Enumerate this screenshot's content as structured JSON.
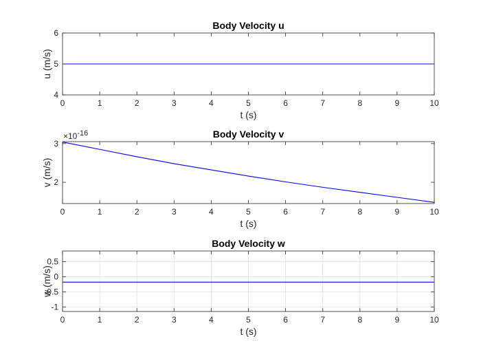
{
  "chart_data": [
    {
      "type": "line",
      "title": "Body Velocity u",
      "xlabel": "t (s)",
      "ylabel": "u (m/s)",
      "xlim": [
        0,
        10
      ],
      "ylim": [
        4,
        6
      ],
      "xticks": [
        0,
        1,
        2,
        3,
        4,
        5,
        6,
        7,
        8,
        9,
        10
      ],
      "yticks": [
        4,
        5,
        6
      ],
      "ytick_labels": [
        "4",
        "5",
        "6"
      ],
      "grid": false,
      "color": "#0000ff",
      "series": [
        {
          "x": [
            0,
            10
          ],
          "y": [
            5,
            5
          ]
        }
      ]
    },
    {
      "type": "line",
      "title": "Body Velocity v",
      "xlabel": "t (s)",
      "ylabel": "v (m/s)",
      "exponent_label": "×10",
      "exponent_power": "-16",
      "xlim": [
        0,
        10
      ],
      "ylim": [
        1.45,
        3.05
      ],
      "xticks": [
        0,
        1,
        2,
        3,
        4,
        5,
        6,
        7,
        8,
        9,
        10
      ],
      "yticks": [
        2,
        3
      ],
      "ytick_labels": [
        "2",
        "3"
      ],
      "grid": false,
      "color": "#0000ff",
      "series": [
        {
          "x": [
            0,
            1,
            2,
            3,
            4,
            5,
            6,
            7,
            8,
            9,
            10
          ],
          "y": [
            3.04,
            2.85,
            2.66,
            2.48,
            2.32,
            2.16,
            2.01,
            1.87,
            1.74,
            1.61,
            1.48
          ]
        }
      ]
    },
    {
      "type": "line",
      "title": "Body Velocity w",
      "xlabel": "t (s)",
      "ylabel": "w (m/s)",
      "xlim": [
        0,
        10
      ],
      "ylim": [
        -1.15,
        0.85
      ],
      "xticks": [
        0,
        1,
        2,
        3,
        4,
        5,
        6,
        7,
        8,
        9,
        10
      ],
      "yticks": [
        -1,
        -0.5,
        0,
        0.5
      ],
      "ytick_labels": [
        "-1",
        "-0.5",
        "0",
        "0.5"
      ],
      "grid": true,
      "color": "#0000ff",
      "series": [
        {
          "x": [
            0,
            10
          ],
          "y": [
            -0.18,
            -0.18
          ]
        }
      ]
    }
  ]
}
